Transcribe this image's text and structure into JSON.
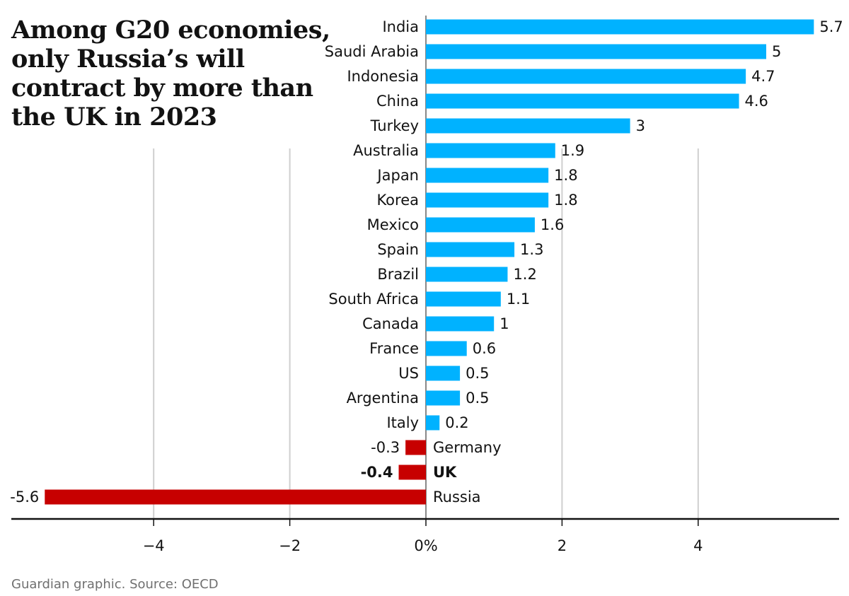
{
  "chart_data": {
    "type": "bar",
    "orientation": "horizontal",
    "title_lines": [
      "Among G20 economies,",
      "only Russia’s will",
      "contract by more than",
      "the UK in 2023"
    ],
    "categories": [
      "India",
      "Saudi Arabia",
      "Indonesia",
      "China",
      "Turkey",
      "Australia",
      "Japan",
      "Korea",
      "Mexico",
      "Spain",
      "Brazil",
      "South Africa",
      "Canada",
      "France",
      "US",
      "Argentina",
      "Italy",
      "Germany",
      "UK",
      "Russia"
    ],
    "values": [
      5.7,
      5,
      4.7,
      4.6,
      3,
      1.9,
      1.8,
      1.8,
      1.6,
      1.3,
      1.2,
      1.1,
      1,
      0.6,
      0.5,
      0.5,
      0.2,
      -0.3,
      -0.4,
      -5.6
    ],
    "value_labels": [
      "5.7",
      "5",
      "4.7",
      "4.6",
      "3",
      "1.9",
      "1.8",
      "1.8",
      "1.6",
      "1.3",
      "1.2",
      "1.1",
      "1",
      "0.6",
      "0.5",
      "0.5",
      "0.2",
      "-0.3",
      "-0.4",
      "-5.6"
    ],
    "highlight": "UK",
    "xlim": [
      -6,
      6
    ],
    "ticks": [
      {
        "value": -4,
        "label": "−4"
      },
      {
        "value": -2,
        "label": "−2"
      },
      {
        "value": 0,
        "label": "0%"
      },
      {
        "value": 2,
        "label": "2"
      },
      {
        "value": 4,
        "label": "4"
      }
    ],
    "colors": {
      "positive": "#00b2ff",
      "negative": "#c70000",
      "text": "#121212",
      "grid": "#cfcfcf"
    },
    "source": "Guardian graphic. Source: OECD"
  }
}
